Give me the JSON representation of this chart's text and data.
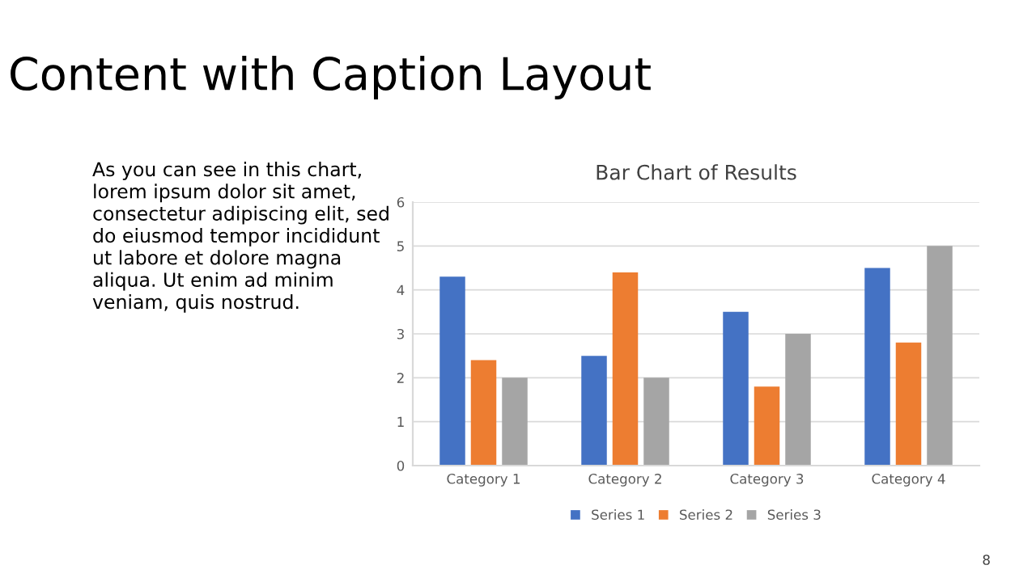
{
  "chart_data": {
    "type": "bar",
    "title": "Bar Chart of Results",
    "categories": [
      "Category 1",
      "Category 2",
      "Category 3",
      "Category 4"
    ],
    "series": [
      {
        "name": "Series 1",
        "color": "#4472c4",
        "values": [
          4.3,
          2.5,
          3.5,
          4.5
        ]
      },
      {
        "name": "Series 2",
        "color": "#ed7d31",
        "values": [
          2.4,
          4.4,
          1.8,
          2.8
        ]
      },
      {
        "name": "Series 3",
        "color": "#a5a5a5",
        "values": [
          2,
          2,
          3,
          5
        ]
      }
    ],
    "ylim": [
      0,
      6
    ],
    "yticks": [
      0,
      1,
      2,
      3,
      4,
      5,
      6
    ],
    "grid": "y",
    "legend": "bottom",
    "annotations": [
      "Content with Caption Layout",
      "As you can see in this chart,\nlorem ipsum dolor sit amet,\nconsectetur adipiscing elit, sed\ndo eiusmod tempor incididunt\nut labore et dolore magna\naliqua. Ut enim ad minim\nveniam, quis nostrud.",
      "8"
    ]
  }
}
